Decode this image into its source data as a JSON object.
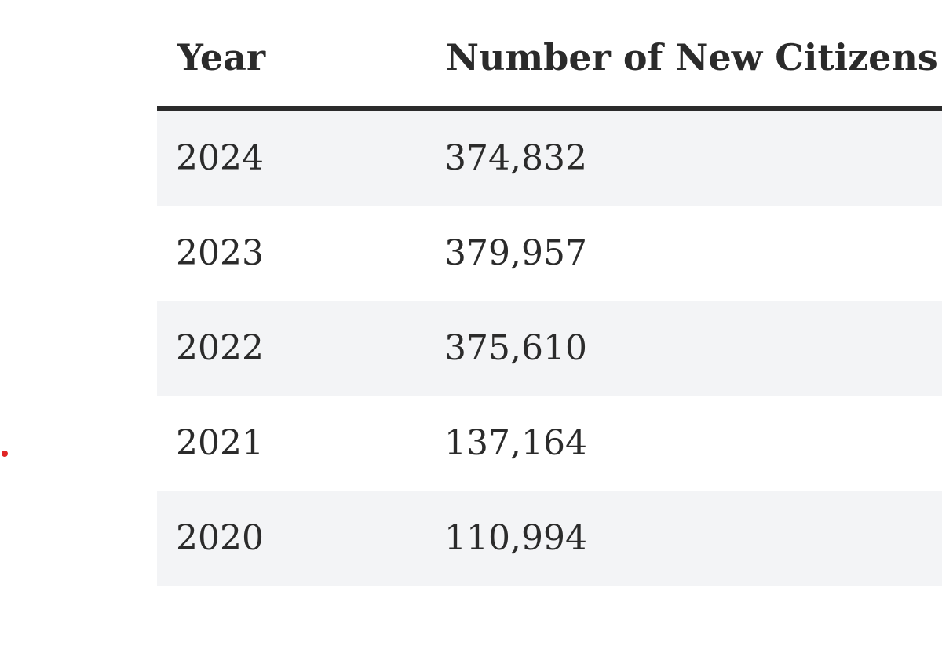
{
  "table": {
    "headers": [
      "Year",
      "Number of New Citizens"
    ],
    "rows": [
      [
        "2024",
        "374,832"
      ],
      [
        "2023",
        "379,957"
      ],
      [
        "2022",
        "375,610"
      ],
      [
        "2021",
        "137,164"
      ],
      [
        "2020",
        "110,994"
      ]
    ]
  },
  "colors": {
    "text": "#2b2b2b",
    "stripe": "#f3f4f6",
    "marker": "#e02424"
  }
}
